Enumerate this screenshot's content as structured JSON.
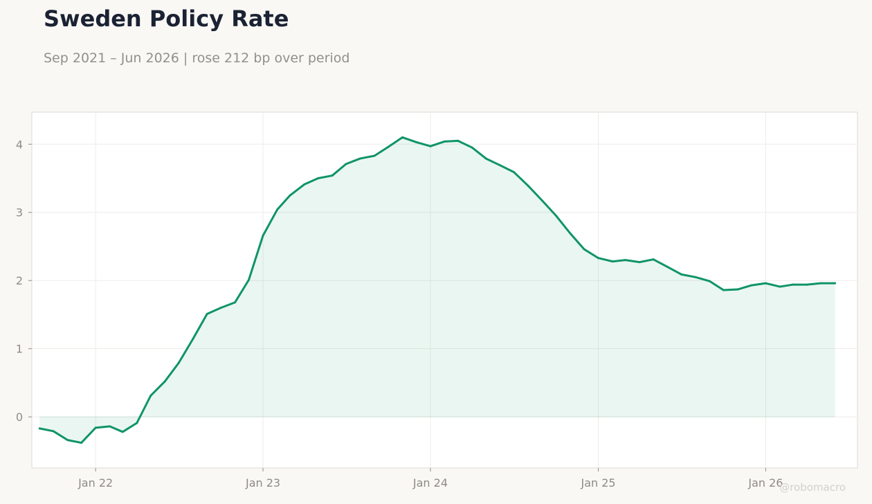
{
  "header": {
    "title": "Sweden Policy Rate",
    "subtitle": "Sep 2021 – Jun 2026 | rose 212 bp over period"
  },
  "watermark": "@robomacro",
  "colors": {
    "line": "#0f9467",
    "fill": "#0f9467",
    "background": "#f9f8f5",
    "plot_background": "#ffffff",
    "grid": "#eeece7",
    "frame": "#dcdad3"
  },
  "chart_data": {
    "type": "area",
    "title": "Sweden Policy Rate",
    "subtitle": "Sep 2021 – Jun 2026 | rose 212 bp over period",
    "xlabel": "",
    "ylabel": "",
    "x_range": [
      "2021-08-15",
      "2026-07-20"
    ],
    "ylim": [
      -0.75,
      4.47
    ],
    "grid": true,
    "legend": "none",
    "x_ticks": [
      {
        "date": "2022-01-01",
        "label": "Jan 22"
      },
      {
        "date": "2023-01-01",
        "label": "Jan 23"
      },
      {
        "date": "2024-01-01",
        "label": "Jan 24"
      },
      {
        "date": "2025-01-01",
        "label": "Jan 25"
      },
      {
        "date": "2026-01-01",
        "label": "Jan 26"
      }
    ],
    "y_ticks": [
      0,
      1,
      2,
      3,
      4
    ],
    "series": [
      {
        "x": [
          "2021-09-01",
          "2021-10-01",
          "2021-11-01",
          "2021-12-01",
          "2022-01-01",
          "2022-02-01",
          "2022-03-01",
          "2022-04-01",
          "2022-05-01",
          "2022-06-01",
          "2022-07-01",
          "2022-08-01",
          "2022-09-01",
          "2022-10-01",
          "2022-11-01",
          "2022-12-01",
          "2023-01-01",
          "2023-02-01",
          "2023-03-01",
          "2023-04-01",
          "2023-05-01",
          "2023-06-01",
          "2023-07-01",
          "2023-08-01",
          "2023-09-01",
          "2023-10-01",
          "2023-11-01",
          "2023-12-01",
          "2024-01-01",
          "2024-02-01",
          "2024-03-01",
          "2024-04-01",
          "2024-05-01",
          "2024-06-01",
          "2024-07-01",
          "2024-08-01",
          "2024-09-01",
          "2024-10-01",
          "2024-11-01",
          "2024-12-01",
          "2025-01-01",
          "2025-02-01",
          "2025-03-01",
          "2025-04-01",
          "2025-05-01",
          "2025-06-01",
          "2025-07-01",
          "2025-08-01",
          "2025-09-01",
          "2025-10-01",
          "2025-11-01",
          "2025-12-01",
          "2026-01-01",
          "2026-02-01",
          "2026-03-01",
          "2026-04-01",
          "2026-05-01",
          "2026-06-01"
        ],
        "values": [
          -0.17,
          -0.21,
          -0.34,
          -0.38,
          -0.16,
          -0.14,
          -0.22,
          -0.09,
          0.31,
          0.52,
          0.79,
          1.14,
          1.51,
          1.6,
          1.68,
          2.01,
          2.66,
          3.04,
          3.25,
          3.41,
          3.5,
          3.54,
          3.71,
          3.79,
          3.83,
          3.96,
          4.1,
          4.03,
          3.97,
          4.04,
          4.05,
          3.95,
          3.79,
          3.69,
          3.59,
          3.39,
          3.17,
          2.95,
          2.69,
          2.46,
          2.33,
          2.28,
          2.3,
          2.27,
          2.31,
          2.2,
          2.09,
          2.05,
          1.99,
          1.86,
          1.87,
          1.93,
          1.96,
          1.91,
          1.94,
          1.94,
          1.96,
          1.96
        ]
      }
    ]
  }
}
